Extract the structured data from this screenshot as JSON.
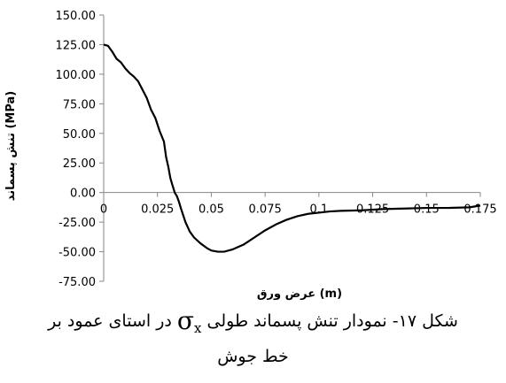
{
  "chart_data": {
    "type": "line",
    "title": "",
    "xlabel": "عرض ورق (m)",
    "ylabel": "تنش پسماند (MPa)",
    "xlim": [
      0,
      0.175
    ],
    "ylim": [
      -75,
      150
    ],
    "x_ticks": [
      "0",
      "0.025",
      "0.05",
      "0.075",
      "0.1",
      "0.125",
      "0.15",
      "0.175"
    ],
    "y_ticks": [
      "150.00",
      "125.00",
      "100.00",
      "75.00",
      "50.00",
      "25.00",
      "0.00",
      "-25.00",
      "-50.00",
      "-75.00"
    ],
    "grid": false,
    "legend": "none",
    "series": [
      {
        "color": "#000000",
        "x": [
          0,
          0.002,
          0.004,
          0.006,
          0.008,
          0.01,
          0.012,
          0.014,
          0.016,
          0.018,
          0.02,
          0.022,
          0.024,
          0.026,
          0.028,
          0.029,
          0.03,
          0.031,
          0.032,
          0.033,
          0.034,
          0.035,
          0.036,
          0.038,
          0.04,
          0.042,
          0.045,
          0.048,
          0.05,
          0.053,
          0.056,
          0.06,
          0.065,
          0.07,
          0.075,
          0.08,
          0.085,
          0.09,
          0.095,
          0.1,
          0.105,
          0.11,
          0.12,
          0.13,
          0.14,
          0.15,
          0.16,
          0.17,
          0.175
        ],
        "y": [
          125,
          124,
          119,
          113,
          110,
          105,
          101,
          98,
          94,
          87,
          80,
          70,
          63,
          52,
          43,
          30,
          22,
          12,
          6,
          0,
          -3,
          -8,
          -14,
          -25,
          -33,
          -38,
          -43,
          -47,
          -49,
          -50,
          -50,
          -48,
          -44,
          -38,
          -32,
          -27,
          -23,
          -20,
          -18,
          -17,
          -16,
          -15.5,
          -15,
          -14,
          -13.5,
          -13,
          -13,
          -12.5,
          -11
        ]
      }
    ]
  },
  "caption": {
    "line1_before": "شکل ۱۷- نمودار تنش پسماند طولی",
    "sigma": "σ",
    "subscript": "x",
    "line1_after": "در استای عمود بر",
    "line2": "خط جوش"
  }
}
